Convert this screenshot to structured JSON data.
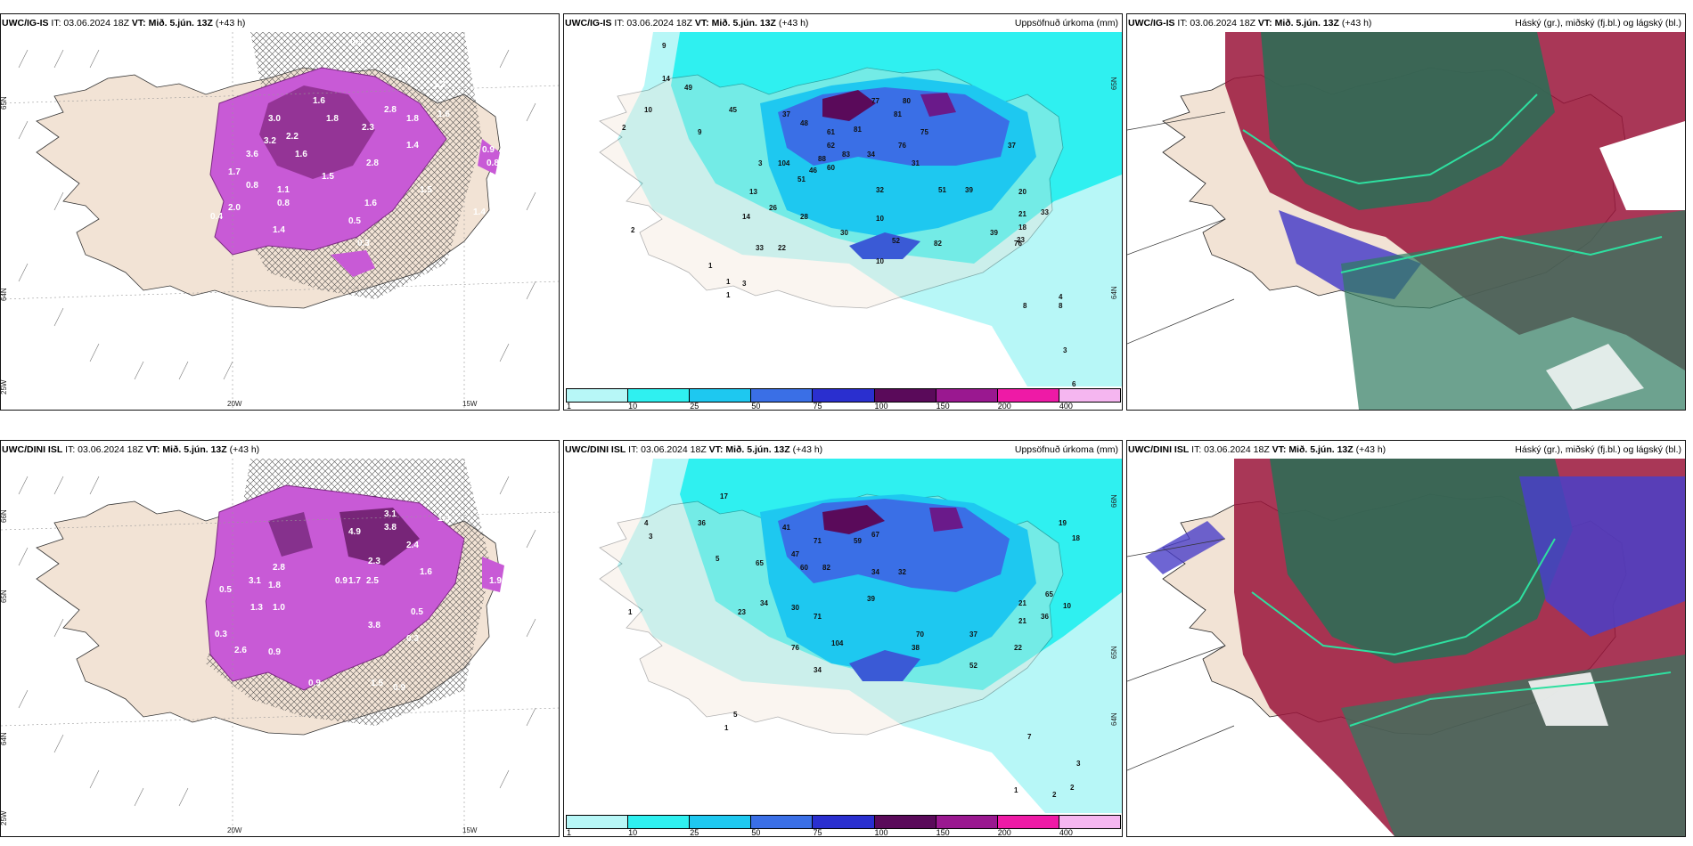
{
  "colors": {
    "land": "#f2e3d5",
    "purple": "#c85ad6",
    "dark_purple": "#6e1f6e",
    "cyan": "#2ff0f0",
    "light_cyan": "#b7f7f7",
    "blue": "#3a5fe6",
    "teal": "#2f7a60",
    "crimson": "#9a1439",
    "violet": "#4a3fc8"
  },
  "panels": {
    "top_left": {
      "model": "UWC/IG-IS",
      "it_text": "IT: 03.06.2024 18Z",
      "vt_text": "VT: Mið. 5.jún. 13Z",
      "lead": "(+43 h)",
      "labels_lat": [
        "65N",
        "64N",
        "25W"
      ],
      "labels_lon": [
        "20W",
        "15W"
      ],
      "values": [
        "0.3",
        "1.3",
        "1.3",
        "2.8",
        "1.8",
        "1.6",
        "1.4",
        "2.8",
        "2.3",
        "1.8",
        "1.6",
        "3.0",
        "2.2",
        "3.2",
        "1.6",
        "3.6",
        "1.7",
        "1.5",
        "0.8",
        "2.0",
        "0.4",
        "1.1",
        "0.8",
        "1.4",
        "0.5",
        "1.6",
        "1.5",
        "0.9",
        "0.5",
        "0.3",
        "1.4",
        "0.8"
      ]
    },
    "top_mid": {
      "model": "UWC/IG-IS",
      "it_text": "IT: 03.06.2024 18Z",
      "vt_text": "VT: Mið. 5.jún. 13Z",
      "lead": "(+43 h)",
      "right_label": "Uppsöfnuð úrkoma (mm)",
      "labels_lat": [
        "65N",
        "64N"
      ],
      "values": [
        "9",
        "14",
        "10",
        "2",
        "49",
        "45",
        "9",
        "37",
        "48",
        "61",
        "81",
        "77",
        "80",
        "75",
        "76",
        "34",
        "88",
        "62",
        "83",
        "81",
        "31",
        "60",
        "104",
        "46",
        "51",
        "32",
        "3",
        "13",
        "26",
        "28",
        "14",
        "51",
        "20",
        "33",
        "21",
        "18",
        "23",
        "39",
        "30",
        "37",
        "10",
        "8",
        "2",
        "1",
        "1",
        "3",
        "1",
        "4",
        "8",
        "3",
        "6",
        "52",
        "76",
        "82",
        "33",
        "22",
        "39",
        "10"
      ],
      "colorbar": {
        "labels": [
          "1",
          "10",
          "25",
          "50",
          "75",
          "100",
          "150",
          "200",
          "400"
        ],
        "colors": [
          "#b7f7f7",
          "#2ff0f0",
          "#1ec8f0",
          "#3a6fe6",
          "#2a2fcf",
          "#5a0a5a",
          "#9a1890",
          "#ee1aa6",
          "#f5b6f0"
        ]
      }
    },
    "top_right": {
      "model": "UWC/IG-IS",
      "it_text": "IT: 03.06.2024 18Z",
      "vt_text": "VT: Mið. 5.jún. 13Z",
      "lead": "(+43 h)",
      "right_label": "Háský (gr.), miðský (fj.bl.) og lágský (bl.)"
    },
    "bottom_left": {
      "model": "UWC/DINI ISL",
      "it_text": "IT: 03.06.2024 18Z",
      "vt_text": "VT: Mið. 5.jún. 13Z",
      "lead": "(+43 h)",
      "labels_lat": [
        "66N",
        "65N",
        "64N",
        "25W"
      ],
      "labels_lon": [
        "20W",
        "15W"
      ],
      "values": [
        "3.1",
        "3.8",
        "2.4",
        "1.3",
        "4.9",
        "2.3",
        "1.6",
        "2.8",
        "3.1",
        "1.8",
        "0.9",
        "2.5",
        "1.7",
        "1.3",
        "1.0",
        "0.5",
        "0.3",
        "3.8",
        "0.5",
        "0.3",
        "0.9",
        "2.6",
        "1.9",
        "1.5",
        "0.9",
        "0.9"
      ]
    },
    "bottom_mid": {
      "model": "UWC/DINI ISL",
      "it_text": "IT: 03.06.2024 18Z",
      "vt_text": "VT: Mið. 5.jún. 13Z",
      "lead": "(+43 h)",
      "right_label": "Uppsöfnuð úrkoma (mm)",
      "labels_lat": [
        "66N",
        "65N",
        "64N"
      ],
      "values": [
        "4",
        "3",
        "36",
        "17",
        "5",
        "41",
        "47",
        "71",
        "59",
        "67",
        "65",
        "82",
        "39",
        "32",
        "34",
        "60",
        "30",
        "23",
        "34",
        "71",
        "76",
        "104",
        "34",
        "38",
        "70",
        "37",
        "52",
        "22",
        "21",
        "21",
        "36",
        "65",
        "19",
        "18",
        "10",
        "1",
        "5",
        "1",
        "7",
        "3",
        "2",
        "2",
        "1"
      ],
      "colorbar": {
        "labels": [
          "1",
          "10",
          "25",
          "50",
          "75",
          "100",
          "150",
          "200",
          "400"
        ],
        "colors": [
          "#b7f7f7",
          "#2ff0f0",
          "#1ec8f0",
          "#3a6fe6",
          "#2a2fcf",
          "#5a0a5a",
          "#9a1890",
          "#ee1aa6",
          "#f5b6f0"
        ]
      }
    },
    "bottom_right": {
      "model": "UWC/DINI ISL",
      "it_text": "IT: 03.06.2024 18Z",
      "vt_text": "VT: Mið. 5.jún. 13Z",
      "lead": "(+43 h)",
      "right_label": "Háský (gr.), miðský (fj.bl.) og lágský (bl.)"
    }
  }
}
